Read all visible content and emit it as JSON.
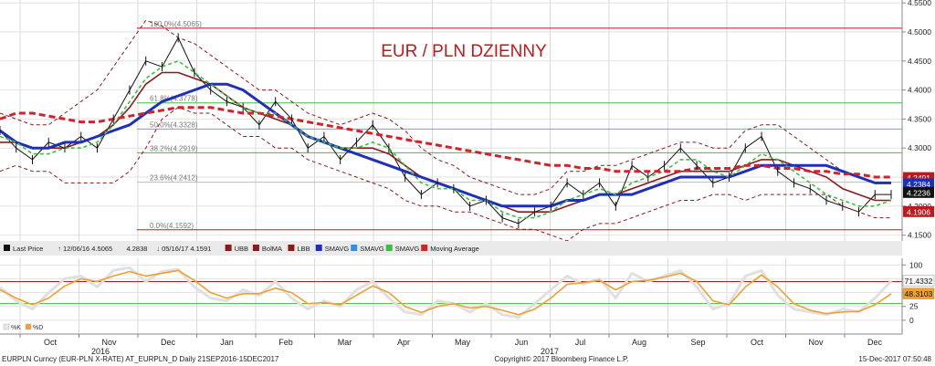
{
  "chart_data": [
    {
      "type": "line",
      "title": "EUR / PLN DZIENNY",
      "ylim": [
        4.14,
        4.555
      ],
      "y_ticks": [
        "4.5500",
        "4.5000",
        "4.4500",
        "4.4000",
        "4.3500",
        "4.3000",
        "4.2500",
        "4.2000",
        "4.1500"
      ],
      "grid": true,
      "fib_levels": [
        {
          "label": "100.0%(4.5065)",
          "value": 4.5065
        },
        {
          "label": "61.8%(4.3778)",
          "value": 4.3778
        },
        {
          "label": "50.0%(4.3328)",
          "value": 4.3328
        },
        {
          "label": "38.2%(4.2919)",
          "value": 4.2919
        },
        {
          "label": "23.6%(4.2412)",
          "value": 4.2412
        },
        {
          "label": "0.0%(4.1592)",
          "value": 4.1592
        }
      ],
      "price_badges": [
        {
          "label": "4.2491",
          "value": 4.2491,
          "color": "#c0181f"
        },
        {
          "label": "4.2384",
          "value": 4.2384,
          "color": "#1f2fb8"
        },
        {
          "label": "4.2236",
          "value": 4.2236,
          "color": "#111111"
        },
        {
          "label": "4.1906",
          "value": 4.1906,
          "color": "#c0181f"
        }
      ],
      "legend": [
        {
          "label": "Last Price",
          "icon": "square-black"
        },
        {
          "label": "12/06/16 4.5065",
          "icon": "up-arrow"
        },
        {
          "label": "4.2838",
          "icon": "none"
        },
        {
          "label": "05/16/17 4.1591",
          "icon": "down-arrow"
        },
        {
          "label": "UBB",
          "icon": "dashed-darkred"
        },
        {
          "label": "BolMA",
          "icon": "solid-darkred"
        },
        {
          "label": "LBB",
          "icon": "dashed-darkred"
        },
        {
          "label": "SMAVG",
          "icon": "solid-blue"
        },
        {
          "label": "SMAVG",
          "icon": "solid-lightblue"
        },
        {
          "label": "SMAVG",
          "icon": "dashed-green"
        },
        {
          "label": "Moving Average",
          "icon": "dashed-red"
        }
      ],
      "series": [
        {
          "name": "Last Price",
          "color": "#111111",
          "values": [
            4.33,
            4.3,
            4.28,
            4.31,
            4.3,
            4.32,
            4.3,
            4.35,
            4.4,
            4.45,
            4.44,
            4.49,
            4.43,
            4.4,
            4.38,
            4.37,
            4.34,
            4.38,
            4.35,
            4.3,
            4.32,
            4.28,
            4.31,
            4.34,
            4.3,
            4.25,
            4.22,
            4.24,
            4.23,
            4.2,
            4.21,
            4.18,
            4.17,
            4.19,
            4.2,
            4.24,
            4.22,
            4.24,
            4.2,
            4.27,
            4.25,
            4.27,
            4.3,
            4.27,
            4.24,
            4.25,
            4.3,
            4.32,
            4.26,
            4.24,
            4.23,
            4.21,
            4.2,
            4.19,
            4.22,
            4.22
          ]
        },
        {
          "name": "BolMA",
          "color": "#8b1a1a",
          "values": [
            4.31,
            4.31,
            4.3,
            4.3,
            4.3,
            4.31,
            4.32,
            4.34,
            4.37,
            4.41,
            4.43,
            4.43,
            4.42,
            4.41,
            4.39,
            4.37,
            4.36,
            4.35,
            4.34,
            4.32,
            4.31,
            4.3,
            4.3,
            4.3,
            4.29,
            4.27,
            4.25,
            4.24,
            4.23,
            4.22,
            4.21,
            4.2,
            4.19,
            4.19,
            4.19,
            4.2,
            4.21,
            4.22,
            4.22,
            4.23,
            4.24,
            4.25,
            4.26,
            4.26,
            4.26,
            4.26,
            4.27,
            4.28,
            4.28,
            4.27,
            4.26,
            4.25,
            4.23,
            4.22,
            4.21,
            4.21
          ]
        },
        {
          "name": "UBB",
          "color": "#8b1a1a",
          "dashed": true,
          "values": [
            4.36,
            4.35,
            4.34,
            4.34,
            4.36,
            4.38,
            4.4,
            4.44,
            4.48,
            4.52,
            4.51,
            4.49,
            4.48,
            4.46,
            4.44,
            4.42,
            4.4,
            4.4,
            4.38,
            4.36,
            4.35,
            4.34,
            4.35,
            4.36,
            4.35,
            4.33,
            4.3,
            4.28,
            4.27,
            4.25,
            4.24,
            4.23,
            4.22,
            4.22,
            4.23,
            4.26,
            4.26,
            4.27,
            4.27,
            4.28,
            4.29,
            4.3,
            4.31,
            4.31,
            4.3,
            4.3,
            4.33,
            4.34,
            4.34,
            4.32,
            4.3,
            4.28,
            4.26,
            4.25,
            4.24,
            4.24
          ]
        },
        {
          "name": "LBB",
          "color": "#8b1a1a",
          "dashed": true,
          "values": [
            4.26,
            4.27,
            4.26,
            4.26,
            4.24,
            4.24,
            4.24,
            4.24,
            4.26,
            4.3,
            4.35,
            4.37,
            4.36,
            4.36,
            4.34,
            4.32,
            4.32,
            4.3,
            4.3,
            4.28,
            4.27,
            4.26,
            4.25,
            4.24,
            4.23,
            4.21,
            4.2,
            4.2,
            4.19,
            4.19,
            4.18,
            4.17,
            4.16,
            4.16,
            4.15,
            4.14,
            4.16,
            4.17,
            4.17,
            4.18,
            4.19,
            4.2,
            4.21,
            4.21,
            4.22,
            4.22,
            4.21,
            4.22,
            4.22,
            4.22,
            4.22,
            4.22,
            4.2,
            4.19,
            4.18,
            4.18
          ]
        },
        {
          "name": "SMAVG",
          "color": "#1f2fb8",
          "values": [
            4.33,
            4.31,
            4.3,
            4.3,
            4.31,
            4.31,
            4.32,
            4.33,
            4.34,
            4.36,
            4.38,
            4.39,
            4.4,
            4.41,
            4.41,
            4.4,
            4.38,
            4.36,
            4.34,
            4.32,
            4.31,
            4.3,
            4.29,
            4.28,
            4.27,
            4.26,
            4.25,
            4.24,
            4.23,
            4.22,
            4.21,
            4.2,
            4.2,
            4.2,
            4.2,
            4.21,
            4.21,
            4.22,
            4.22,
            4.22,
            4.23,
            4.24,
            4.25,
            4.25,
            4.25,
            4.25,
            4.26,
            4.27,
            4.27,
            4.27,
            4.27,
            4.27,
            4.26,
            4.25,
            4.24,
            4.24
          ]
        },
        {
          "name": "SMAVG",
          "color": "#3fbf3f",
          "dashed": true,
          "values": [
            4.32,
            4.31,
            4.29,
            4.29,
            4.3,
            4.3,
            4.31,
            4.34,
            4.38,
            4.42,
            4.44,
            4.45,
            4.43,
            4.41,
            4.39,
            4.37,
            4.36,
            4.36,
            4.34,
            4.32,
            4.31,
            4.3,
            4.3,
            4.31,
            4.3,
            4.27,
            4.24,
            4.23,
            4.23,
            4.21,
            4.21,
            4.19,
            4.18,
            4.18,
            4.19,
            4.21,
            4.22,
            4.23,
            4.22,
            4.24,
            4.25,
            4.26,
            4.28,
            4.28,
            4.26,
            4.25,
            4.27,
            4.29,
            4.28,
            4.26,
            4.24,
            4.22,
            4.21,
            4.2,
            4.2,
            4.21
          ]
        },
        {
          "name": "Moving Average",
          "color": "#d2222a",
          "dashed": true,
          "values": [
            4.35,
            4.36,
            4.36,
            4.355,
            4.35,
            4.345,
            4.345,
            4.35,
            4.355,
            4.36,
            4.365,
            4.37,
            4.37,
            4.37,
            4.365,
            4.36,
            4.36,
            4.355,
            4.35,
            4.345,
            4.34,
            4.335,
            4.33,
            4.325,
            4.32,
            4.315,
            4.31,
            4.305,
            4.3,
            4.295,
            4.29,
            4.285,
            4.28,
            4.275,
            4.27,
            4.27,
            4.265,
            4.265,
            4.26,
            4.26,
            4.26,
            4.26,
            4.26,
            4.265,
            4.265,
            4.265,
            4.27,
            4.27,
            4.265,
            4.265,
            4.26,
            4.26,
            4.255,
            4.255,
            4.25,
            4.25
          ]
        }
      ]
    },
    {
      "type": "line",
      "ylim": [
        -25,
        112
      ],
      "y_ticks": [
        "100",
        "75",
        "50",
        "25",
        "0"
      ],
      "price_badges": [
        {
          "label": "71.4332",
          "value": 71.4332,
          "color": "#f7f7f7"
        },
        {
          "label": "48.3103",
          "value": 48.3103,
          "color": "#f0a030"
        }
      ],
      "reference_lines": [
        70,
        30
      ],
      "legend": [
        {
          "label": "%K",
          "color": "#e6e6e6"
        },
        {
          "label": "%D",
          "color": "#f0a030"
        }
      ],
      "series": [
        {
          "name": "%K",
          "color": "#e0e0e0",
          "values": [
            60,
            35,
            20,
            50,
            75,
            80,
            60,
            90,
            95,
            70,
            88,
            92,
            60,
            40,
            35,
            55,
            45,
            70,
            40,
            20,
            35,
            25,
            55,
            70,
            40,
            15,
            10,
            35,
            30,
            15,
            30,
            10,
            5,
            30,
            55,
            80,
            65,
            75,
            40,
            85,
            70,
            80,
            90,
            60,
            20,
            30,
            80,
            90,
            45,
            20,
            15,
            10,
            20,
            15,
            40,
            71
          ]
        },
        {
          "name": "%D",
          "color": "#f0a030",
          "values": [
            55,
            40,
            28,
            40,
            62,
            75,
            70,
            80,
            88,
            80,
            85,
            90,
            72,
            50,
            40,
            48,
            48,
            58,
            50,
            30,
            32,
            28,
            45,
            62,
            50,
            25,
            14,
            25,
            30,
            22,
            25,
            18,
            10,
            20,
            40,
            65,
            68,
            72,
            55,
            70,
            72,
            78,
            85,
            70,
            35,
            28,
            60,
            82,
            60,
            30,
            18,
            12,
            15,
            16,
            28,
            48
          ]
        }
      ]
    }
  ],
  "x_axis": {
    "month_labels": [
      "Oct",
      "Nov",
      "Dec",
      "Jan",
      "Feb",
      "Mar",
      "Apr",
      "May",
      "Jun",
      "Jul",
      "Aug",
      "Sep",
      "Oct",
      "Nov",
      "Dec"
    ],
    "year_labels": [
      "2016",
      "2017"
    ]
  },
  "footer": {
    "left": "EURPLN Curncy (EUR-PLN X-RATE) AT_EURPLN_D  Daily 21SEP2016-15DEC2017",
    "center": "Copyright© 2017 Bloomberg Finance L.P.",
    "right": "15-Dec-2017 07:50:48"
  }
}
